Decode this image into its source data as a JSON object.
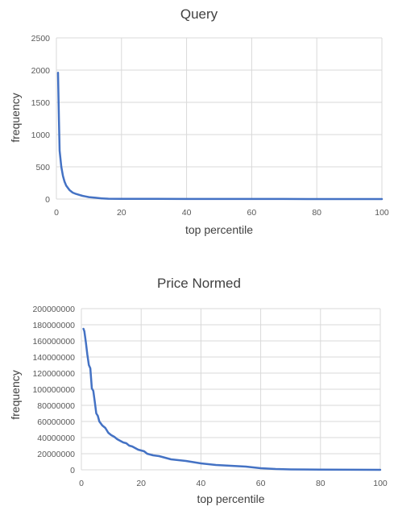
{
  "chart_data": [
    {
      "type": "line",
      "title": "Query",
      "xlabel": "top percentile",
      "ylabel": "frequency",
      "xlim": [
        0,
        100
      ],
      "ylim": [
        0,
        2500
      ],
      "xticks": [
        0,
        20,
        40,
        60,
        80,
        100
      ],
      "yticks": [
        0,
        500,
        1000,
        1500,
        2000,
        2500
      ],
      "xtick_labels": [
        "0",
        "20",
        "40",
        "60",
        "80",
        "100"
      ],
      "ytick_labels": [
        "0",
        "500",
        "1000",
        "1500",
        "2000",
        "2500"
      ],
      "grid": true,
      "color": "#4472c4",
      "series": [
        {
          "x": [
            0.5,
            0.8,
            1,
            1.5,
            2,
            2.5,
            3,
            4,
            5,
            6,
            7,
            8,
            9,
            10,
            12,
            14,
            16,
            20,
            30,
            40,
            50,
            60,
            70,
            80,
            90,
            100
          ],
          "y": [
            1960,
            1200,
            750,
            500,
            360,
            270,
            210,
            140,
            100,
            80,
            65,
            50,
            40,
            30,
            20,
            10,
            5,
            3,
            2,
            1,
            1,
            1,
            1,
            0,
            0,
            0
          ]
        }
      ]
    },
    {
      "type": "line",
      "title": "Price Normed",
      "xlabel": "top percentile",
      "ylabel": "frequency",
      "xlim": [
        0,
        100
      ],
      "ylim": [
        0,
        200000000
      ],
      "xticks": [
        0,
        20,
        40,
        60,
        80,
        100
      ],
      "yticks": [
        0,
        20000000,
        40000000,
        60000000,
        80000000,
        100000000,
        120000000,
        140000000,
        160000000,
        180000000,
        200000000
      ],
      "xtick_labels": [
        "0",
        "20",
        "40",
        "60",
        "80",
        "100"
      ],
      "ytick_labels": [
        "0",
        "20000000",
        "40000000",
        "60000000",
        "80000000",
        "100000000",
        "120000000",
        "140000000",
        "160000000",
        "180000000",
        "200000000"
      ],
      "grid": true,
      "color": "#4472c4",
      "series": [
        {
          "x": [
            0.7,
            1,
            1.5,
            2,
            2.5,
            3,
            3.5,
            4,
            4.5,
            5,
            5.5,
            6,
            7,
            8,
            9,
            10,
            11,
            12,
            14,
            15,
            16,
            17,
            18,
            19,
            20,
            21,
            22,
            24,
            26,
            28,
            30,
            35,
            40,
            45,
            50,
            55,
            60,
            65,
            70,
            80,
            90,
            100
          ],
          "y": [
            175000000,
            172000000,
            158000000,
            143000000,
            130000000,
            126000000,
            101000000,
            98000000,
            84000000,
            70000000,
            67000000,
            60000000,
            55000000,
            52000000,
            46000000,
            43000000,
            41000000,
            38000000,
            34000000,
            33000000,
            30000000,
            29000000,
            27000000,
            25000000,
            24000000,
            23000000,
            20000000,
            18000000,
            17000000,
            15000000,
            13000000,
            11000000,
            8000000,
            6000000,
            5000000,
            4000000,
            2000000,
            1000000,
            500000,
            200000,
            100000,
            0
          ]
        }
      ]
    }
  ]
}
